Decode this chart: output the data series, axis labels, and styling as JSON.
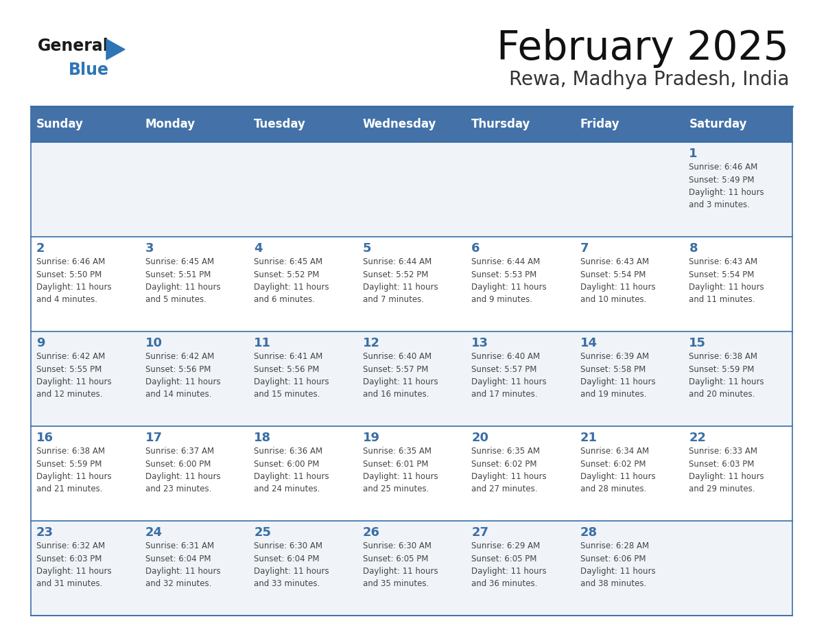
{
  "title": "February 2025",
  "subtitle": "Rewa, Madhya Pradesh, India",
  "header_bg": "#4472a8",
  "header_text_color": "#ffffff",
  "cell_bg_light": "#f0f4f8",
  "cell_bg_white": "#ffffff",
  "day_num_color": "#3a6ea5",
  "text_color": "#444444",
  "border_color": "#3a6ea5",
  "days_of_week": [
    "Sunday",
    "Monday",
    "Tuesday",
    "Wednesday",
    "Thursday",
    "Friday",
    "Saturday"
  ],
  "calendar_data": [
    [
      null,
      null,
      null,
      null,
      null,
      null,
      {
        "day": 1,
        "sunrise": "6:46 AM",
        "sunset": "5:49 PM",
        "daylight": "11 hours and 3 minutes."
      }
    ],
    [
      {
        "day": 2,
        "sunrise": "6:46 AM",
        "sunset": "5:50 PM",
        "daylight": "11 hours and 4 minutes."
      },
      {
        "day": 3,
        "sunrise": "6:45 AM",
        "sunset": "5:51 PM",
        "daylight": "11 hours and 5 minutes."
      },
      {
        "day": 4,
        "sunrise": "6:45 AM",
        "sunset": "5:52 PM",
        "daylight": "11 hours and 6 minutes."
      },
      {
        "day": 5,
        "sunrise": "6:44 AM",
        "sunset": "5:52 PM",
        "daylight": "11 hours and 7 minutes."
      },
      {
        "day": 6,
        "sunrise": "6:44 AM",
        "sunset": "5:53 PM",
        "daylight": "11 hours and 9 minutes."
      },
      {
        "day": 7,
        "sunrise": "6:43 AM",
        "sunset": "5:54 PM",
        "daylight": "11 hours and 10 minutes."
      },
      {
        "day": 8,
        "sunrise": "6:43 AM",
        "sunset": "5:54 PM",
        "daylight": "11 hours and 11 minutes."
      }
    ],
    [
      {
        "day": 9,
        "sunrise": "6:42 AM",
        "sunset": "5:55 PM",
        "daylight": "11 hours and 12 minutes."
      },
      {
        "day": 10,
        "sunrise": "6:42 AM",
        "sunset": "5:56 PM",
        "daylight": "11 hours and 14 minutes."
      },
      {
        "day": 11,
        "sunrise": "6:41 AM",
        "sunset": "5:56 PM",
        "daylight": "11 hours and 15 minutes."
      },
      {
        "day": 12,
        "sunrise": "6:40 AM",
        "sunset": "5:57 PM",
        "daylight": "11 hours and 16 minutes."
      },
      {
        "day": 13,
        "sunrise": "6:40 AM",
        "sunset": "5:57 PM",
        "daylight": "11 hours and 17 minutes."
      },
      {
        "day": 14,
        "sunrise": "6:39 AM",
        "sunset": "5:58 PM",
        "daylight": "11 hours and 19 minutes."
      },
      {
        "day": 15,
        "sunrise": "6:38 AM",
        "sunset": "5:59 PM",
        "daylight": "11 hours and 20 minutes."
      }
    ],
    [
      {
        "day": 16,
        "sunrise": "6:38 AM",
        "sunset": "5:59 PM",
        "daylight": "11 hours and 21 minutes."
      },
      {
        "day": 17,
        "sunrise": "6:37 AM",
        "sunset": "6:00 PM",
        "daylight": "11 hours and 23 minutes."
      },
      {
        "day": 18,
        "sunrise": "6:36 AM",
        "sunset": "6:00 PM",
        "daylight": "11 hours and 24 minutes."
      },
      {
        "day": 19,
        "sunrise": "6:35 AM",
        "sunset": "6:01 PM",
        "daylight": "11 hours and 25 minutes."
      },
      {
        "day": 20,
        "sunrise": "6:35 AM",
        "sunset": "6:02 PM",
        "daylight": "11 hours and 27 minutes."
      },
      {
        "day": 21,
        "sunrise": "6:34 AM",
        "sunset": "6:02 PM",
        "daylight": "11 hours and 28 minutes."
      },
      {
        "day": 22,
        "sunrise": "6:33 AM",
        "sunset": "6:03 PM",
        "daylight": "11 hours and 29 minutes."
      }
    ],
    [
      {
        "day": 23,
        "sunrise": "6:32 AM",
        "sunset": "6:03 PM",
        "daylight": "11 hours and 31 minutes."
      },
      {
        "day": 24,
        "sunrise": "6:31 AM",
        "sunset": "6:04 PM",
        "daylight": "11 hours and 32 minutes."
      },
      {
        "day": 25,
        "sunrise": "6:30 AM",
        "sunset": "6:04 PM",
        "daylight": "11 hours and 33 minutes."
      },
      {
        "day": 26,
        "sunrise": "6:30 AM",
        "sunset": "6:05 PM",
        "daylight": "11 hours and 35 minutes."
      },
      {
        "day": 27,
        "sunrise": "6:29 AM",
        "sunset": "6:05 PM",
        "daylight": "11 hours and 36 minutes."
      },
      {
        "day": 28,
        "sunrise": "6:28 AM",
        "sunset": "6:06 PM",
        "daylight": "11 hours and 38 minutes."
      },
      null
    ]
  ]
}
